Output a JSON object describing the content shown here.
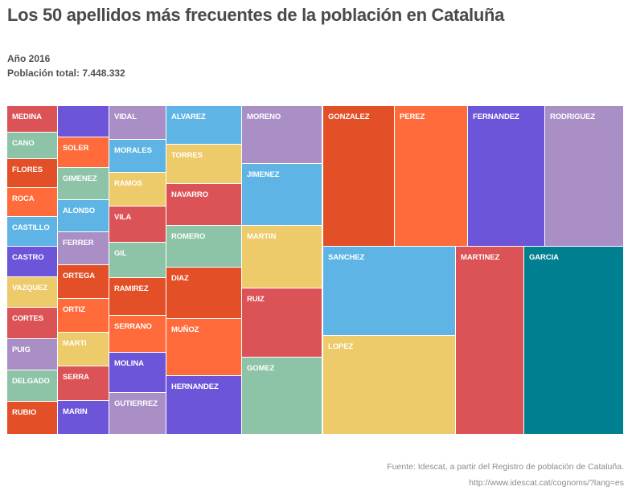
{
  "header": {
    "title": "Los 50 apellidos más frecuentes de la población en Cataluña",
    "year_line": "Año 2016",
    "population_line": "Población total: 7.448.332"
  },
  "footer": {
    "source": "Fuente: Idescat, a partir del Registro de población de Cataluña.",
    "url": "http://www.idescat.cat/cognoms/?lang=es"
  },
  "colors": {
    "red": "#DB5357",
    "green": "#8DC3A7",
    "darkorange": "#E34F26",
    "orange": "#FF6B3A",
    "blue": "#5EB5E5",
    "purple": "#6C55D9",
    "yellow": "#EDCA6A",
    "lavender": "#AA8FC7",
    "teal": "#007F90"
  },
  "chart_data": {
    "type": "treemap",
    "title": "Los 50 apellidos más frecuentes de la población en Cataluña",
    "subtitle": [
      "Año 2016",
      "Población total: 7.448.332"
    ],
    "value_note": "Values not printed; relative_size is each tile's estimated share of the treemap area (%)",
    "columns": [
      {
        "items": [
          {
            "name": "MEDINA",
            "color": "red",
            "relative_size": 0.65
          },
          {
            "name": "CANO",
            "color": "green",
            "relative_size": 0.65
          },
          {
            "name": "FLORES",
            "color": "darkorange",
            "relative_size": 0.71
          },
          {
            "name": "ROCA",
            "color": "orange",
            "relative_size": 0.71
          },
          {
            "name": "CASTILLO",
            "color": "blue",
            "relative_size": 0.73
          },
          {
            "name": "CASTRO",
            "color": "purple",
            "relative_size": 0.75
          },
          {
            "name": "VAZQUEZ",
            "color": "yellow",
            "relative_size": 0.75
          },
          {
            "name": "CORTES",
            "color": "red",
            "relative_size": 0.77
          },
          {
            "name": "PUIG",
            "color": "lavender",
            "relative_size": 0.77
          },
          {
            "name": "DELGADO",
            "color": "green",
            "relative_size": 0.77
          },
          {
            "name": "RUBIO",
            "color": "darkorange",
            "relative_size": 0.83
          }
        ]
      },
      {
        "items": [
          {
            "name": "",
            "color": "purple",
            "relative_size": 0.79
          },
          {
            "name": "SOLER",
            "color": "orange",
            "relative_size": 0.77
          },
          {
            "name": "GIMENEZ",
            "color": "green",
            "relative_size": 0.81
          },
          {
            "name": "ALONSO",
            "color": "blue",
            "relative_size": 0.81
          },
          {
            "name": "FERRER",
            "color": "lavender",
            "relative_size": 0.83
          },
          {
            "name": "ORTEGA",
            "color": "darkorange",
            "relative_size": 0.85
          },
          {
            "name": "ORTIZ",
            "color": "orange",
            "relative_size": 0.85
          },
          {
            "name": "MARTI",
            "color": "yellow",
            "relative_size": 0.85
          },
          {
            "name": "SERRA",
            "color": "red",
            "relative_size": 0.87
          },
          {
            "name": "MARIN",
            "color": "purple",
            "relative_size": 0.89
          }
        ]
      },
      {
        "items": [
          {
            "name": "VIDAL",
            "color": "lavender",
            "relative_size": 0.93
          },
          {
            "name": "MORALES",
            "color": "blue",
            "relative_size": 0.91
          },
          {
            "name": "RAMOS",
            "color": "yellow",
            "relative_size": 0.93
          },
          {
            "name": "VILA",
            "color": "red",
            "relative_size": 1.0
          },
          {
            "name": "GIL",
            "color": "green",
            "relative_size": 0.98
          },
          {
            "name": "RAMIREZ",
            "color": "darkorange",
            "relative_size": 1.04
          },
          {
            "name": "SERRANO",
            "color": "orange",
            "relative_size": 1.02
          },
          {
            "name": "MOLINA",
            "color": "purple",
            "relative_size": 1.11
          },
          {
            "name": "GUTIERREZ",
            "color": "lavender",
            "relative_size": 1.13
          }
        ]
      },
      {
        "items": [
          {
            "name": "ALVAREZ",
            "color": "blue",
            "relative_size": 1.41
          },
          {
            "name": "TORRES",
            "color": "yellow",
            "relative_size": 1.44
          },
          {
            "name": "NAVARRO",
            "color": "red",
            "relative_size": 1.53
          },
          {
            "name": "ROMERO",
            "color": "green",
            "relative_size": 1.53
          },
          {
            "name": "DIAZ",
            "color": "darkorange",
            "relative_size": 1.89
          },
          {
            "name": "MUÑOZ",
            "color": "orange",
            "relative_size": 2.1
          },
          {
            "name": "HERNANDEZ",
            "color": "purple",
            "relative_size": 2.13
          }
        ]
      },
      {
        "items": [
          {
            "name": "MORENO",
            "color": "lavender",
            "relative_size": 2.31
          },
          {
            "name": "JIMENEZ",
            "color": "blue",
            "relative_size": 2.47
          },
          {
            "name": "MARTIN",
            "color": "yellow",
            "relative_size": 2.5
          },
          {
            "name": "RUIZ",
            "color": "red",
            "relative_size": 2.76
          },
          {
            "name": "GOMEZ",
            "color": "green",
            "relative_size": 3.12
          }
        ]
      },
      {
        "items": [
          {
            "name": "GONZALEZ",
            "color": "darkorange",
            "relative_size": 4.97
          },
          {
            "name": "PEREZ",
            "color": "orange",
            "relative_size": 5.08
          },
          {
            "name": "FERNANDEZ",
            "color": "purple",
            "relative_size": 5.36
          },
          {
            "name": "RODRIGUEZ",
            "color": "lavender",
            "relative_size": 5.53
          },
          {
            "name": "SANCHEZ",
            "color": "blue",
            "relative_size": 5.63
          },
          {
            "name": "LOPEZ",
            "color": "yellow",
            "relative_size": 6.29
          },
          {
            "name": "MARTINEZ",
            "color": "red",
            "relative_size": 6.14
          },
          {
            "name": "GARCIA",
            "color": "teal",
            "relative_size": 8.99
          }
        ]
      }
    ]
  }
}
